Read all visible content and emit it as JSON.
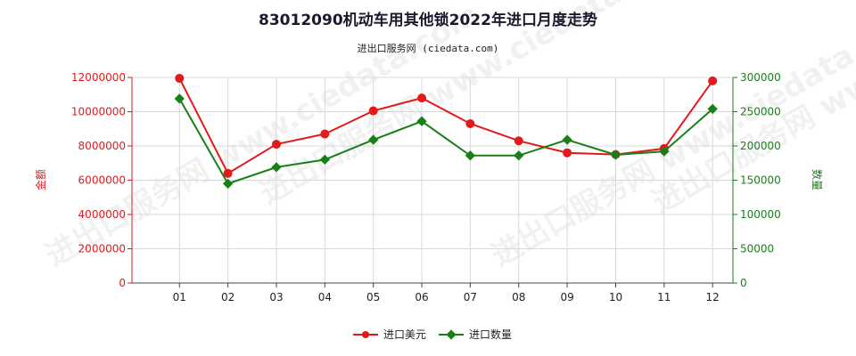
{
  "chart_data": {
    "type": "line",
    "title": "83012090机动车用其他锁2022年进口月度走势",
    "subtitle": "进出口服务网 (ciedata.com)",
    "categories": [
      "01",
      "02",
      "03",
      "04",
      "05",
      "06",
      "07",
      "08",
      "09",
      "10",
      "11",
      "12"
    ],
    "y_left": {
      "label": "金额",
      "range": [
        0,
        12000000
      ],
      "ticks": [
        0,
        2000000,
        4000000,
        6000000,
        8000000,
        10000000,
        12000000
      ]
    },
    "y_right": {
      "label": "数量",
      "range": [
        0,
        300000
      ],
      "ticks": [
        0,
        50000,
        100000,
        150000,
        200000,
        250000,
        300000
      ]
    },
    "series": [
      {
        "name": "进口美元",
        "axis": "left",
        "color": "#e31a1c",
        "values": [
          11950000,
          6400000,
          8100000,
          8700000,
          10050000,
          10800000,
          9300000,
          8300000,
          7600000,
          7500000,
          7850000,
          11800000
        ]
      },
      {
        "name": "进口数量",
        "axis": "right",
        "color": "#1a7f1a",
        "values": [
          269000,
          145000,
          169000,
          180000,
          209000,
          236000,
          186000,
          186000,
          209000,
          187000,
          192000,
          254000
        ]
      }
    ],
    "grid": true,
    "legend_position": "bottom-center",
    "watermark": "进出口服务网 www.ciedata.com"
  }
}
